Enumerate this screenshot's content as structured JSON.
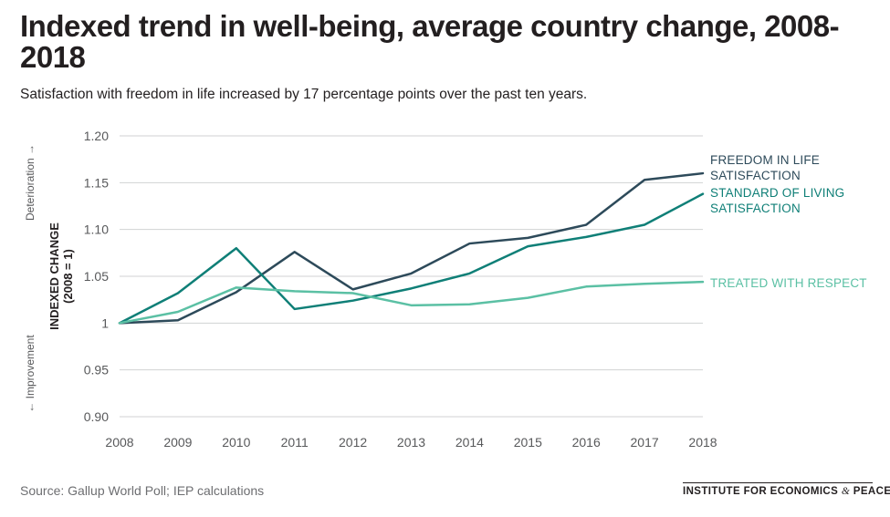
{
  "title": "Indexed trend in well-being, average country change, 2008-2018",
  "subtitle": "Satisfaction with freedom in life increased by 17 percentage points over the past ten years.",
  "source": "Source: Gallup World Poll; IEP calculations",
  "logo": {
    "left": "INSTITUTE FOR ECONOMICS",
    "amp": "&",
    "right": "PEACE"
  },
  "colors": {
    "freedom": "#2d4a5a",
    "living": "#0f7f77",
    "respect": "#5bc0a4",
    "grid": "#d0d2d3",
    "text": "#231f20",
    "tick": "#58595b"
  },
  "chart_data": {
    "type": "line",
    "title": "Indexed trend in well-being, average country change, 2008-2018",
    "xlabel": "",
    "ylabel": "INDEXED CHANGE (2008 = 1)",
    "ylabel_lines": [
      "INDEXED CHANGE",
      "(2008 = 1)"
    ],
    "direction_up": "Deterioration →",
    "direction_down": "← Improvement",
    "x": [
      2008,
      2009,
      2010,
      2011,
      2012,
      2013,
      2014,
      2015,
      2016,
      2017,
      2018
    ],
    "ylim": [
      0.9,
      1.2
    ],
    "yticks": [
      {
        "value": 0.9,
        "label": "0.90"
      },
      {
        "value": 0.95,
        "label": "0.95"
      },
      {
        "value": 1.0,
        "label": "1"
      },
      {
        "value": 1.05,
        "label": "1.05"
      },
      {
        "value": 1.1,
        "label": "1.10"
      },
      {
        "value": 1.15,
        "label": "1.15"
      },
      {
        "value": 1.2,
        "label": "1.20"
      }
    ],
    "grid": true,
    "series": [
      {
        "key": "freedom",
        "name": "FREEDOM IN LIFE SATISFACTION",
        "label_lines": [
          "FREEDOM IN LIFE",
          "SATISFACTION"
        ],
        "values": [
          1.0,
          1.003,
          1.033,
          1.076,
          1.036,
          1.053,
          1.085,
          1.091,
          1.105,
          1.153,
          1.16
        ]
      },
      {
        "key": "living",
        "name": "STANDARD OF LIVING SATISFACTION",
        "label_lines": [
          "STANDARD OF LIVING",
          "SATISFACTION"
        ],
        "values": [
          1.0,
          1.032,
          1.08,
          1.015,
          1.024,
          1.037,
          1.053,
          1.082,
          1.092,
          1.105,
          1.138
        ]
      },
      {
        "key": "respect",
        "name": "TREATED WITH RESPECT",
        "label_lines": [
          "TREATED WITH RESPECT"
        ],
        "values": [
          1.0,
          1.012,
          1.038,
          1.034,
          1.032,
          1.019,
          1.02,
          1.027,
          1.039,
          1.042,
          1.044
        ]
      }
    ]
  }
}
